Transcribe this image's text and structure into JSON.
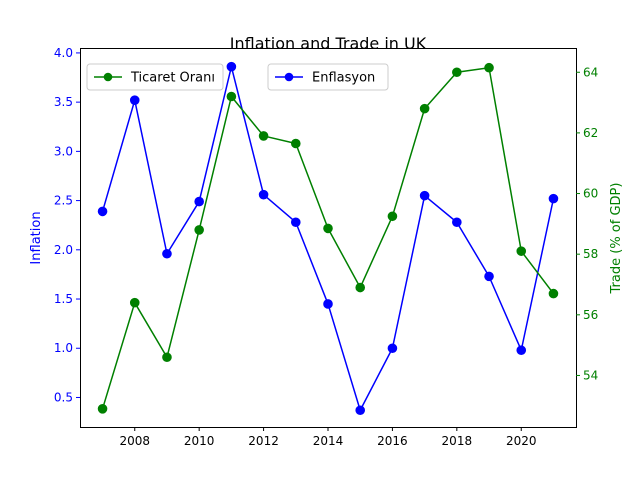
{
  "chart_data": {
    "type": "line",
    "title": "Inflation and Trade in UK",
    "xlabel": "",
    "x": [
      2007,
      2008,
      2009,
      2010,
      2011,
      2012,
      2013,
      2014,
      2015,
      2016,
      2017,
      2018,
      2019,
      2020,
      2021
    ],
    "xlim": [
      2006.3,
      2021.7
    ],
    "x_ticks": [
      2008,
      2010,
      2012,
      2014,
      2016,
      2018,
      2020
    ],
    "grid": false,
    "series": [
      {
        "name": "Enflasyon",
        "axis": "left",
        "color": "#0000ff",
        "marker": "circle",
        "values": [
          2.39,
          3.52,
          1.96,
          2.49,
          3.86,
          2.56,
          2.28,
          1.45,
          0.37,
          1.0,
          2.55,
          2.28,
          1.73,
          0.98,
          2.52
        ]
      },
      {
        "name": "Ticaret Oranı",
        "axis": "right",
        "color": "#008000",
        "marker": "circle",
        "values": [
          52.9,
          56.4,
          54.6,
          58.8,
          63.2,
          61.9,
          61.65,
          58.85,
          56.9,
          59.25,
          62.8,
          64.0,
          64.15,
          58.1,
          56.7
        ]
      }
    ],
    "y_left": {
      "label": "Inflation",
      "color": "#0000ff",
      "lim": [
        0.2,
        4.05
      ],
      "ticks": [
        0.5,
        1.0,
        1.5,
        2.0,
        2.5,
        3.0,
        3.5,
        4.0
      ],
      "tick_labels": [
        "0.5",
        "1.0",
        "1.5",
        "2.0",
        "2.5",
        "3.0",
        "3.5",
        "4.0"
      ]
    },
    "y_right": {
      "label": "Trade (% of GDP)",
      "color": "#008000",
      "lim": [
        52.3,
        64.8
      ],
      "ticks": [
        54,
        56,
        58,
        60,
        62,
        64
      ],
      "tick_labels": [
        "54",
        "56",
        "58",
        "60",
        "62",
        "64"
      ]
    },
    "legends": [
      {
        "entries": [
          "Ticaret Oranı"
        ],
        "placement": "upper left"
      },
      {
        "entries": [
          "Enflasyon"
        ],
        "placement": "upper center"
      }
    ]
  }
}
